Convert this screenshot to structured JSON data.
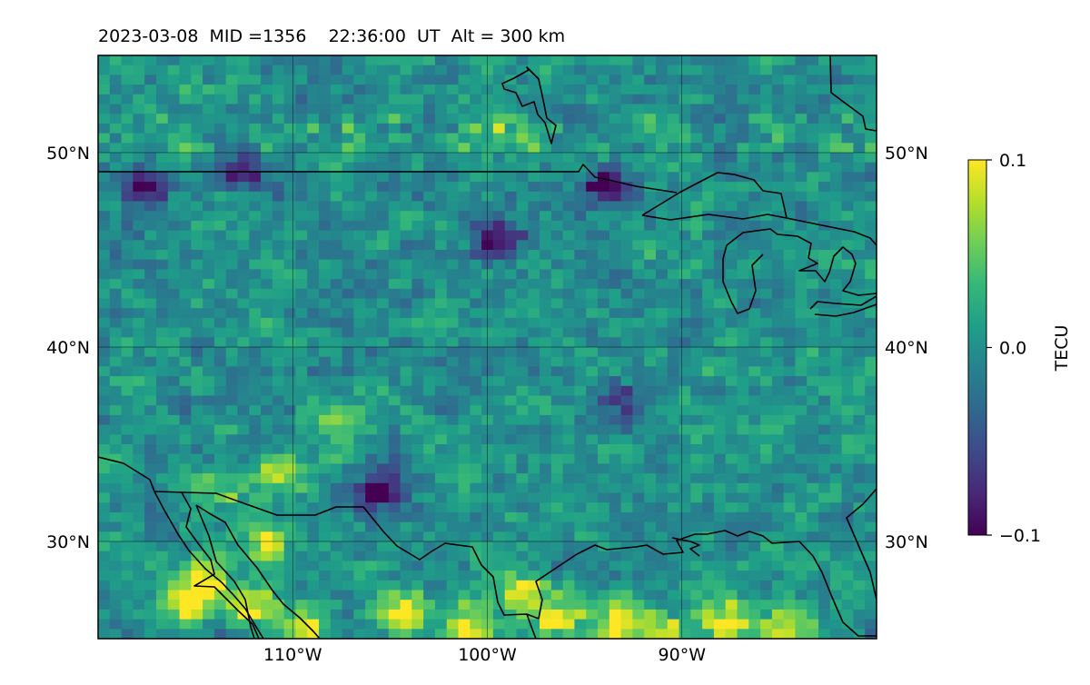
{
  "title": "2023-03-08  MID =1356    22:36:00  UT  Alt = 300 km",
  "chart_data": {
    "type": "heatmap",
    "title": "2023-03-08  MID =1356    22:36:00  UT  Alt = 300 km",
    "quantity": "TECU",
    "xlim": [
      -120,
      -80
    ],
    "ylim": [
      25,
      55
    ],
    "x_ticks": [
      {
        "value": -110,
        "label": "110°W"
      },
      {
        "value": -100,
        "label": "100°W"
      },
      {
        "value": -90,
        "label": "90°W"
      }
    ],
    "y_ticks": [
      {
        "value": 50,
        "label": "50°N"
      },
      {
        "value": 40,
        "label": "40°N"
      },
      {
        "value": 30,
        "label": "30°N"
      }
    ],
    "grid": true,
    "colorbar": {
      "label": "TECU",
      "colormap": "viridis",
      "min": -0.1,
      "max": 0.1,
      "ticks": [
        {
          "value": 0.1,
          "label": "0.1"
        },
        {
          "value": 0.0,
          "label": "0.0"
        },
        {
          "value": -0.1,
          "label": "−0.1"
        }
      ],
      "colors": [
        "#440154",
        "#482878",
        "#3e4989",
        "#31688e",
        "#26828e",
        "#1f9e89",
        "#35b779",
        "#6ece58",
        "#b5de2b",
        "#fde725"
      ]
    },
    "background_level": 0.0,
    "enhanced_regions": [
      {
        "lon": -114.5,
        "lat": 28.2,
        "value": 0.1
      },
      {
        "lon": -115.3,
        "lat": 26.8,
        "value": 0.1
      },
      {
        "lon": -112.0,
        "lat": 26.7,
        "value": 0.1
      },
      {
        "lon": -110.5,
        "lat": 33.5,
        "value": 0.08
      },
      {
        "lon": -111.5,
        "lat": 30.0,
        "value": 0.09
      },
      {
        "lon": -107.6,
        "lat": 35.8,
        "value": 0.07
      },
      {
        "lon": -109.0,
        "lat": 25.7,
        "value": 0.09
      },
      {
        "lon": -104.3,
        "lat": 26.2,
        "value": 0.1
      },
      {
        "lon": -101.0,
        "lat": 25.6,
        "value": 0.1
      },
      {
        "lon": -98.0,
        "lat": 27.2,
        "value": 0.09
      },
      {
        "lon": -96.2,
        "lat": 26.0,
        "value": 0.09
      },
      {
        "lon": -93.5,
        "lat": 25.9,
        "value": 0.1
      },
      {
        "lon": -91.0,
        "lat": 25.5,
        "value": 0.09
      },
      {
        "lon": -87.8,
        "lat": 26.0,
        "value": 0.1
      },
      {
        "lon": -84.5,
        "lat": 25.5,
        "value": 0.09
      },
      {
        "lon": -99.5,
        "lat": 51.7,
        "value": 0.06
      },
      {
        "lon": -113.8,
        "lat": 32.6,
        "value": 0.08
      }
    ],
    "depleted_regions": [
      {
        "lon": -105.6,
        "lat": 32.5,
        "value": -0.1
      },
      {
        "lon": -93.8,
        "lat": 48.2,
        "value": -0.1
      },
      {
        "lon": -99.5,
        "lat": 45.5,
        "value": -0.08
      },
      {
        "lon": -112.5,
        "lat": 49.0,
        "value": -0.08
      },
      {
        "lon": -117.7,
        "lat": 48.0,
        "value": -0.08
      },
      {
        "lon": -93.0,
        "lat": 37.2,
        "value": -0.08
      }
    ]
  }
}
